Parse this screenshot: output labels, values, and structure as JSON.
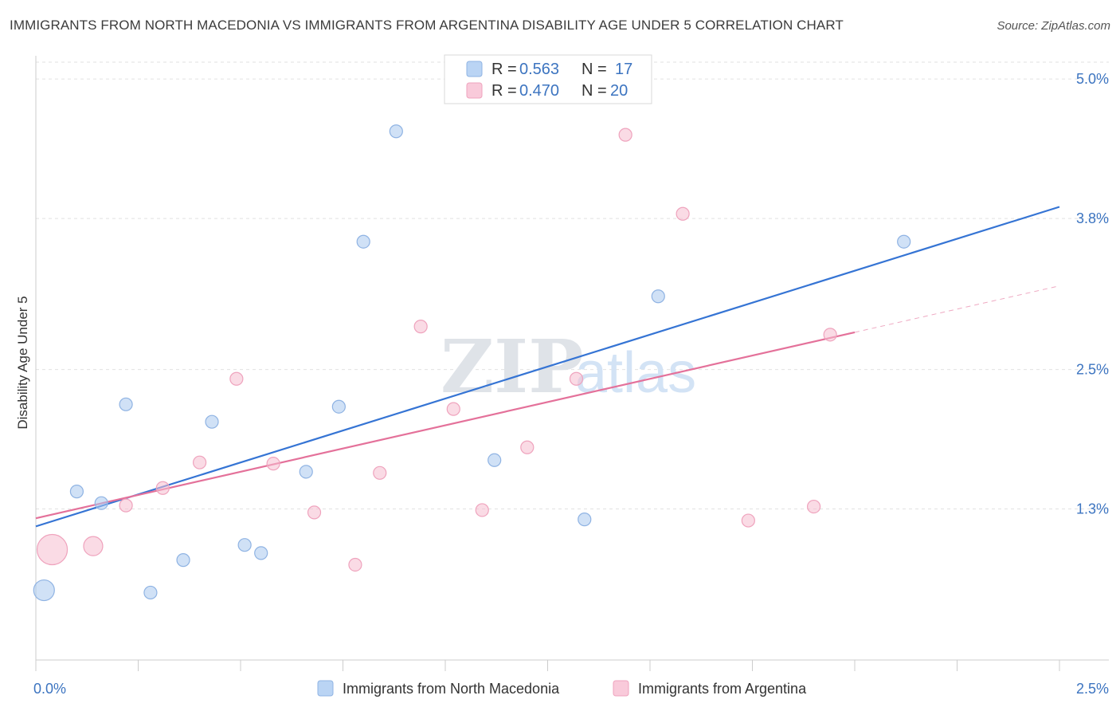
{
  "title": "IMMIGRANTS FROM NORTH MACEDONIA VS IMMIGRANTS FROM ARGENTINA DISABILITY AGE UNDER 5 CORRELATION CHART",
  "source": "Source: ZipAtlas.com",
  "watermark": {
    "zip": "ZIP",
    "atlas": "atlas"
  },
  "chart_data": {
    "type": "scatter",
    "ylabel": "Disability Age Under 5",
    "xlim": [
      0.0,
      2.5
    ],
    "ylim": [
      0.0,
      5.2
    ],
    "x_tick_labels": [
      {
        "value": 0.0,
        "label": "0.0%"
      },
      {
        "value": 2.5,
        "label": "2.5%"
      }
    ],
    "y_ticks": [
      {
        "value": 1.3,
        "label": "1.3%"
      },
      {
        "value": 2.5,
        "label": "2.5%"
      },
      {
        "value": 3.8,
        "label": "3.8%"
      },
      {
        "value": 5.0,
        "label": "5.0%"
      }
    ],
    "grid": "horizontal dashed",
    "legend": {
      "placement": "top-center",
      "entries": [
        {
          "r_label": "R =",
          "r_value": "0.563",
          "n_label": "N =",
          "n_value": "17"
        },
        {
          "r_label": "R =",
          "r_value": "0.470",
          "n_label": "N =",
          "n_value": "20"
        }
      ]
    },
    "series": [
      {
        "name": "Immigrants from North Macedonia",
        "color": "#a9c8ee",
        "line_color": "#3574d4",
        "trend": {
          "x0": 0.0,
          "y0": 1.15,
          "x1": 2.5,
          "y1": 3.9,
          "solid_to": 2.5
        },
        "points": [
          {
            "x": 0.02,
            "y": 0.6,
            "size": "large"
          },
          {
            "x": 0.1,
            "y": 1.45
          },
          {
            "x": 0.16,
            "y": 1.35
          },
          {
            "x": 0.22,
            "y": 2.2
          },
          {
            "x": 0.28,
            "y": 0.58
          },
          {
            "x": 0.36,
            "y": 0.86
          },
          {
            "x": 0.43,
            "y": 2.05
          },
          {
            "x": 0.51,
            "y": 0.99
          },
          {
            "x": 0.55,
            "y": 0.92
          },
          {
            "x": 0.66,
            "y": 1.62
          },
          {
            "x": 0.74,
            "y": 2.18
          },
          {
            "x": 0.8,
            "y": 3.6
          },
          {
            "x": 0.88,
            "y": 4.55
          },
          {
            "x": 1.12,
            "y": 1.72
          },
          {
            "x": 1.34,
            "y": 1.21
          },
          {
            "x": 1.52,
            "y": 3.13
          },
          {
            "x": 2.12,
            "y": 3.6
          }
        ]
      },
      {
        "name": "Immigrants from Argentina",
        "color": "#f6bdd0",
        "line_color": "#e4719a",
        "trend": {
          "x0": 0.0,
          "y0": 1.22,
          "x1": 2.5,
          "y1": 3.22,
          "solid_to": 2.0
        },
        "points": [
          {
            "x": 0.04,
            "y": 0.95,
            "size": "xlarge"
          },
          {
            "x": 0.14,
            "y": 0.98,
            "size": "medium"
          },
          {
            "x": 0.22,
            "y": 1.33
          },
          {
            "x": 0.31,
            "y": 1.48
          },
          {
            "x": 0.4,
            "y": 1.7
          },
          {
            "x": 0.49,
            "y": 2.42
          },
          {
            "x": 0.58,
            "y": 1.69
          },
          {
            "x": 0.68,
            "y": 1.27
          },
          {
            "x": 0.78,
            "y": 0.82
          },
          {
            "x": 0.84,
            "y": 1.61
          },
          {
            "x": 0.94,
            "y": 2.87
          },
          {
            "x": 1.02,
            "y": 2.16
          },
          {
            "x": 1.09,
            "y": 1.29
          },
          {
            "x": 1.2,
            "y": 1.83
          },
          {
            "x": 1.32,
            "y": 2.42
          },
          {
            "x": 1.44,
            "y": 4.52
          },
          {
            "x": 1.58,
            "y": 3.84
          },
          {
            "x": 1.74,
            "y": 1.2
          },
          {
            "x": 1.9,
            "y": 1.32
          },
          {
            "x": 1.94,
            "y": 2.8
          }
        ]
      }
    ]
  }
}
